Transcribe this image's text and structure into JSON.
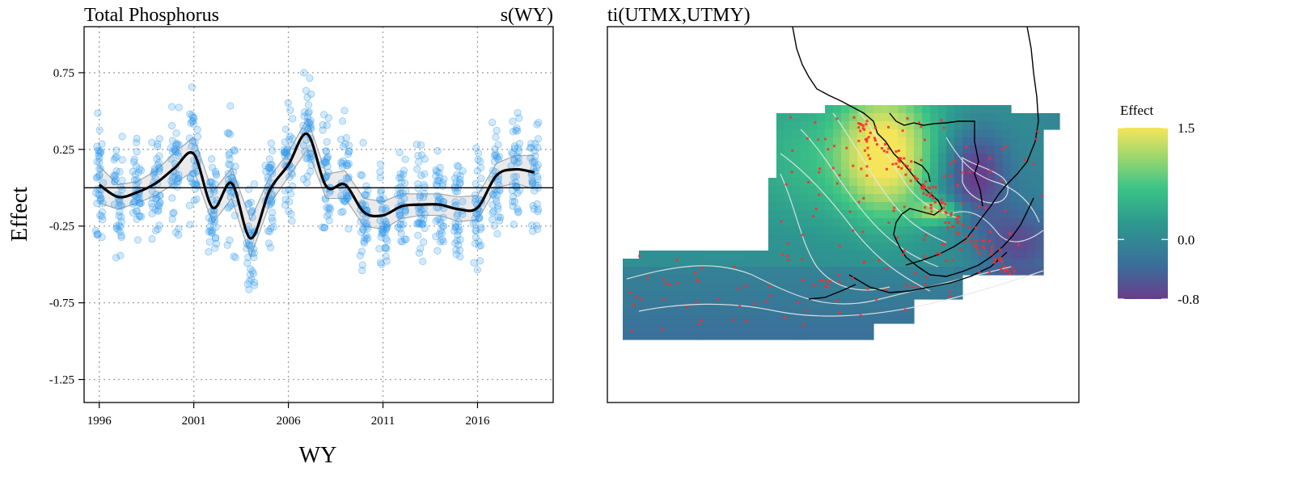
{
  "chart_data": [
    {
      "type": "scatter",
      "title": "Total Phosphorus",
      "subtitle": "s(WY)",
      "xlabel": "WY",
      "ylabel": "Effect",
      "xlim": [
        1995.2,
        2020.0
      ],
      "ylim": [
        -1.4,
        1.05
      ],
      "xticks": [
        1996,
        2001,
        2006,
        2011,
        2016
      ],
      "xtick_labels": [
        "1996",
        "2001",
        "2006",
        "2011",
        "2016"
      ],
      "yticks": [
        0.75,
        0.25,
        -0.25,
        -0.75,
        -1.25
      ],
      "ytick_labels": [
        "0.75",
        "0.25",
        "-0.25",
        "-0.75",
        "-1.25"
      ],
      "grid": true,
      "reference_line_y": 0,
      "colors": {
        "points": "#3399ee",
        "smooth": "#000000",
        "band": "#d9d9d9",
        "band_edge": "#a6a6a6",
        "grid": "#a0a0a0"
      },
      "smooth": {
        "x": [
          1996,
          1997,
          1998,
          1999,
          2000,
          2001,
          2002,
          2003,
          2004,
          2005,
          2006,
          2007,
          2008,
          2009,
          2010,
          2011,
          2012,
          2013,
          2014,
          2015,
          2016,
          2017,
          2018,
          2019
        ],
        "y": [
          0.02,
          -0.06,
          -0.03,
          0.03,
          0.13,
          0.22,
          -0.13,
          0.03,
          -0.33,
          -0.02,
          0.15,
          0.35,
          0.01,
          0.02,
          -0.16,
          -0.18,
          -0.12,
          -0.11,
          -0.11,
          -0.14,
          -0.13,
          0.08,
          0.12,
          0.1
        ]
      },
      "band_halfwidth": [
        0.12,
        0.08,
        0.07,
        0.08,
        0.1,
        0.11,
        0.1,
        0.1,
        0.12,
        0.09,
        0.08,
        0.1,
        0.08,
        0.09,
        0.09,
        0.09,
        0.08,
        0.07,
        0.07,
        0.08,
        0.08,
        0.08,
        0.09,
        0.11
      ],
      "points": {
        "years": [
          1996,
          1997,
          1998,
          1999,
          2000,
          2001,
          2002,
          2003,
          2004,
          2005,
          2006,
          2007,
          2008,
          2009,
          2010,
          2011,
          2012,
          2013,
          2014,
          2015,
          2016,
          2017,
          2018,
          2019
        ],
        "per_year": 40,
        "spread": [
          0.45,
          0.38,
          0.33,
          0.38,
          0.42,
          0.45,
          0.42,
          0.42,
          0.43,
          0.38,
          0.4,
          0.42,
          0.42,
          0.43,
          0.4,
          0.38,
          0.35,
          0.35,
          0.35,
          0.35,
          0.38,
          0.42,
          0.48,
          0.48
        ]
      }
    },
    {
      "type": "heatmap",
      "title": "ti(UTMX,UTMY)",
      "legend_title": "Effect",
      "scale": {
        "min": -0.8,
        "max": 1.5,
        "labels": [
          "1.5",
          "0.0",
          "-0.8"
        ],
        "label_values": [
          1.5,
          0.0,
          -0.8
        ]
      },
      "colorscale": [
        "#6a3d8c",
        "#3a6f9a",
        "#2d9a8f",
        "#3cc486",
        "#a8d96b",
        "#f4e55b"
      ],
      "colors": {
        "coastline": "#000000",
        "contours": "#e8e8e8",
        "stations": "#ff2a2a"
      }
    }
  ]
}
